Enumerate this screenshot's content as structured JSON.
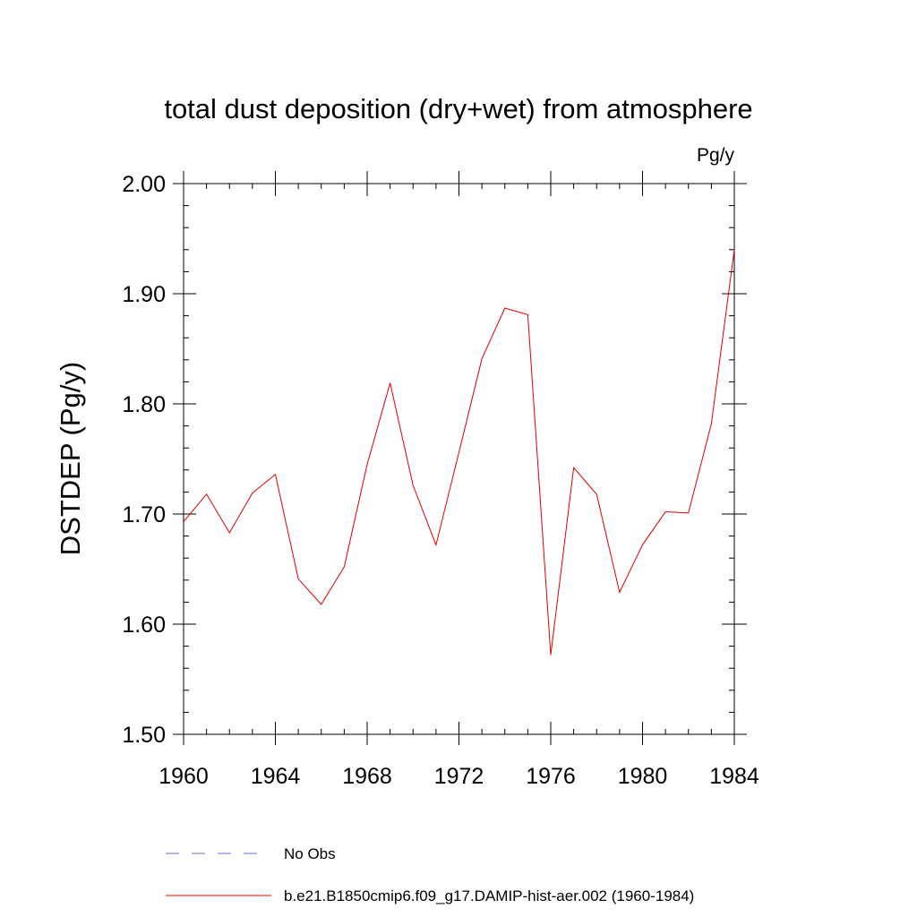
{
  "chart_data": {
    "type": "line",
    "title": "total dust deposition (dry+wet) from atmosphere",
    "units": "Pg/y",
    "xlabel": "",
    "ylabel": "DSTDEP  (Pg/y)",
    "xlim": [
      1960,
      1984
    ],
    "ylim": [
      1.5,
      2.0
    ],
    "xticks": [
      1960,
      1964,
      1968,
      1972,
      1976,
      1980,
      1984
    ],
    "xtick_labels": [
      "1960",
      "1964",
      "1968",
      "1972",
      "1976",
      "1980",
      "1984"
    ],
    "yticks": [
      1.5,
      1.6,
      1.7,
      1.8,
      1.9,
      2.0
    ],
    "ytick_labels": [
      "1.50",
      "1.60",
      "1.70",
      "1.80",
      "1.90",
      "2.00"
    ],
    "grid": false,
    "legend_position": "bottom",
    "x": [
      1960,
      1961,
      1962,
      1963,
      1964,
      1965,
      1966,
      1967,
      1968,
      1969,
      1970,
      1971,
      1972,
      1973,
      1974,
      1975,
      1976,
      1977,
      1978,
      1979,
      1980,
      1981,
      1982,
      1983,
      1984
    ],
    "series": [
      {
        "name": "b.e21.B1850cmip6.f09_g17.DAMIP-hist-aer.002 (1960-1984)",
        "color": "#e00000",
        "style": "solid",
        "values": [
          1.693,
          1.718,
          1.683,
          1.719,
          1.736,
          1.641,
          1.618,
          1.652,
          1.745,
          1.819,
          1.726,
          1.672,
          1.756,
          1.841,
          1.887,
          1.881,
          1.572,
          1.742,
          1.718,
          1.629,
          1.672,
          1.702,
          1.701,
          1.782,
          1.94
        ]
      }
    ],
    "legend": [
      {
        "name": "No Obs",
        "color": "#6a6ad0",
        "style": "dashed"
      },
      {
        "name": "b.e21.B1850cmip6.f09_g17.DAMIP-hist-aer.002 (1960-1984)",
        "color": "#e00000",
        "style": "solid"
      }
    ]
  }
}
